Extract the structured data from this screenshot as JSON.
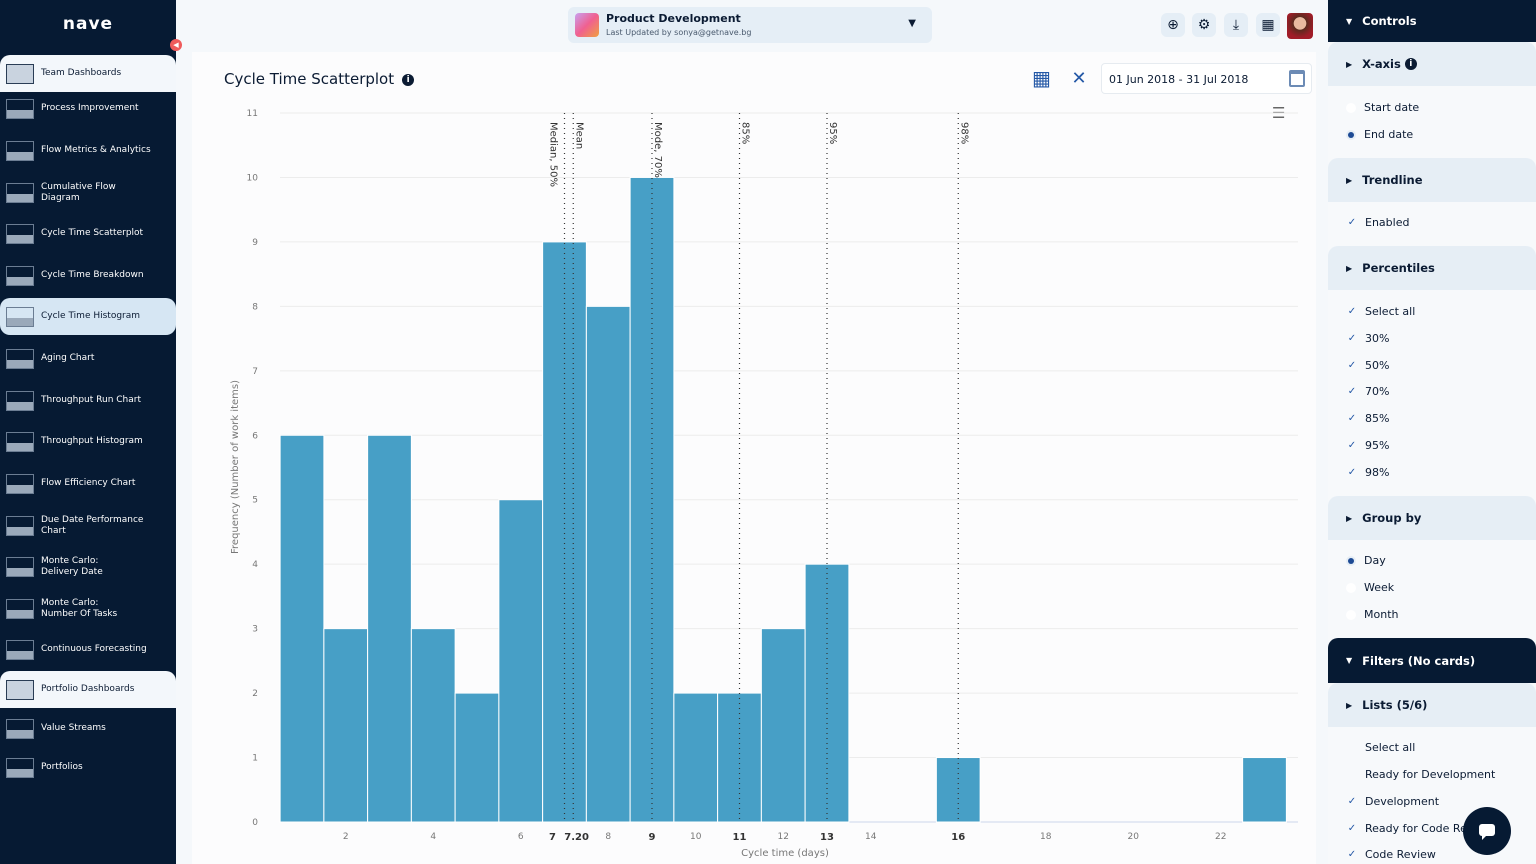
{
  "app": {
    "logo": "nave"
  },
  "sidebar": {
    "items": [
      {
        "label": "Team Dashboards"
      },
      {
        "label": "Process Improvement"
      },
      {
        "label": "Flow Metrics & Analytics"
      },
      {
        "label": "Cumulative Flow Diagram"
      },
      {
        "label": "Cycle Time Scatterplot"
      },
      {
        "label": "Cycle Time Breakdown"
      },
      {
        "label": "Cycle Time Histogram"
      },
      {
        "label": "Aging Chart"
      },
      {
        "label": "Throughput Run Chart"
      },
      {
        "label": "Throughput Histogram"
      },
      {
        "label": "Flow Efficiency Chart"
      },
      {
        "label": "Due Date Performance Chart"
      },
      {
        "label": "Monte Carlo: Delivery Date"
      },
      {
        "label": "Monte Carlo: Number Of Tasks"
      },
      {
        "label": "Continuous Forecasting"
      },
      {
        "label": "Portfolio Dashboards"
      },
      {
        "label": "Value Streams"
      },
      {
        "label": "Portfolios"
      }
    ]
  },
  "header": {
    "project_name": "Product Development",
    "last_updated": "Last Updated by sonya@getnave.bg"
  },
  "main": {
    "title": "Cycle Time Scatterplot",
    "date_range": "01 Jun 2018 - 31 Jul 2018"
  },
  "controls": {
    "title": "Controls",
    "xaxis": {
      "label": "X-axis",
      "options": [
        "Start date",
        "End date"
      ],
      "selected": "End date"
    },
    "trendline": {
      "label": "Trendline",
      "enabled_label": "Enabled",
      "enabled": true
    },
    "percentiles": {
      "label": "Percentiles",
      "options": [
        "Select all",
        "30%",
        "50%",
        "70%",
        "85%",
        "95%",
        "98%"
      ]
    },
    "group_by": {
      "label": "Group by",
      "options": [
        "Day",
        "Week",
        "Month"
      ],
      "selected": "Day"
    },
    "filters": {
      "title": "Filters (No cards)",
      "lists_label": "Lists (5/6)",
      "lists": [
        "Select all",
        "Ready for Development",
        "Development",
        "Ready for Code Review",
        "Code Review"
      ],
      "checked": [
        false,
        false,
        true,
        true,
        true
      ]
    }
  },
  "colors": {
    "bar": "#479fc6",
    "sidebar_bg": "#061a33",
    "accent": "#2458a6"
  },
  "chart_data": {
    "type": "bar",
    "xlabel": "Cycle time (days)",
    "ylabel": "Frequency (Number of work items)",
    "x": [
      1,
      2,
      3,
      4,
      5,
      6,
      7,
      8,
      9,
      10,
      11,
      12,
      13,
      14,
      15,
      16,
      17,
      18,
      19,
      20,
      21,
      22,
      23
    ],
    "values": [
      6,
      3,
      6,
      3,
      2,
      5,
      9,
      8,
      10,
      2,
      2,
      3,
      4,
      0,
      0,
      1,
      0,
      0,
      0,
      0,
      0,
      0,
      1
    ],
    "ylim": [
      0,
      11
    ],
    "yticks": [
      0,
      1,
      2,
      3,
      4,
      5,
      6,
      7,
      8,
      9,
      10,
      11
    ],
    "xticks": [
      "2",
      "4",
      "6",
      "8",
      "10",
      "12",
      "14",
      "18",
      "20",
      "22"
    ],
    "xtick_values": [
      2,
      4,
      6,
      8,
      10,
      12,
      14,
      18,
      20,
      22
    ],
    "highlight_ticks": [
      {
        "value": 7,
        "label": "7"
      },
      {
        "value": 7.2,
        "label": "7.20"
      },
      {
        "value": 9,
        "label": "9"
      },
      {
        "value": 11,
        "label": "11"
      },
      {
        "value": 13,
        "label": "13"
      },
      {
        "value": 16,
        "label": "16"
      }
    ],
    "reference_lines": [
      {
        "value": 7,
        "label": "Median, 50%"
      },
      {
        "value": 7.2,
        "label": "Mean"
      },
      {
        "value": 9,
        "label": "Mode, 70%"
      },
      {
        "value": 11,
        "label": "85%"
      },
      {
        "value": 13,
        "label": "95%"
      },
      {
        "value": 16,
        "label": "98%"
      }
    ],
    "grid": true,
    "legend": "none"
  }
}
